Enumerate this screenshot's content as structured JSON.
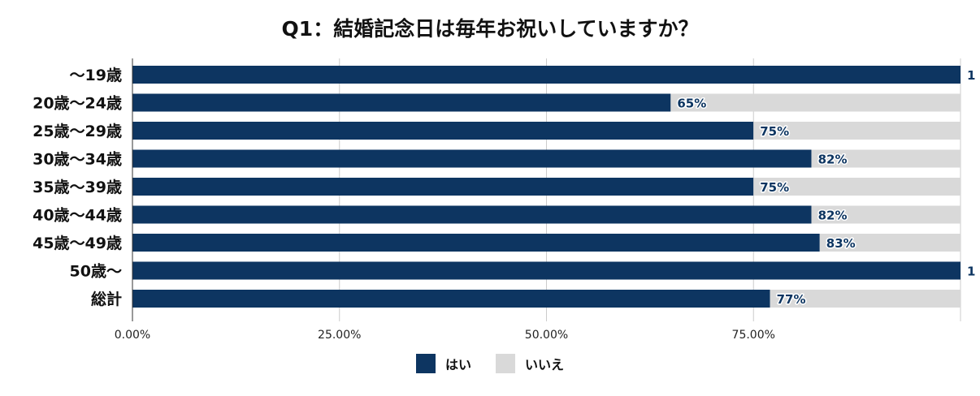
{
  "chart_data": {
    "type": "bar",
    "orientation": "horizontal",
    "stacked": true,
    "title": "Q1：結婚記念日は毎年お祝いしていますか？",
    "categories": [
      "～19歳",
      "20歳～24歳",
      "25歳～29歳",
      "30歳～34歳",
      "35歳～39歳",
      "40歳～44歳",
      "45歳～49歳",
      "50歳～",
      "総計"
    ],
    "series": [
      {
        "name": "はい",
        "values": [
          100,
          65,
          75,
          82,
          75,
          82,
          83,
          100,
          77
        ],
        "color": "#0d3561"
      },
      {
        "name": "いいえ",
        "values": [
          0,
          35,
          25,
          18,
          25,
          18,
          17,
          0,
          23
        ],
        "color": "#d9d9d9"
      }
    ],
    "data_labels": [
      "1",
      "65%",
      "75%",
      "82%",
      "75%",
      "82%",
      "83%",
      "1",
      "77%"
    ],
    "data_label_color": "#0d3561",
    "xlim": [
      0,
      100
    ],
    "xticks": [
      "0.00%",
      "25.00%",
      "50.00%",
      "75.00%"
    ],
    "grid": true,
    "legend_position": "bottom"
  }
}
